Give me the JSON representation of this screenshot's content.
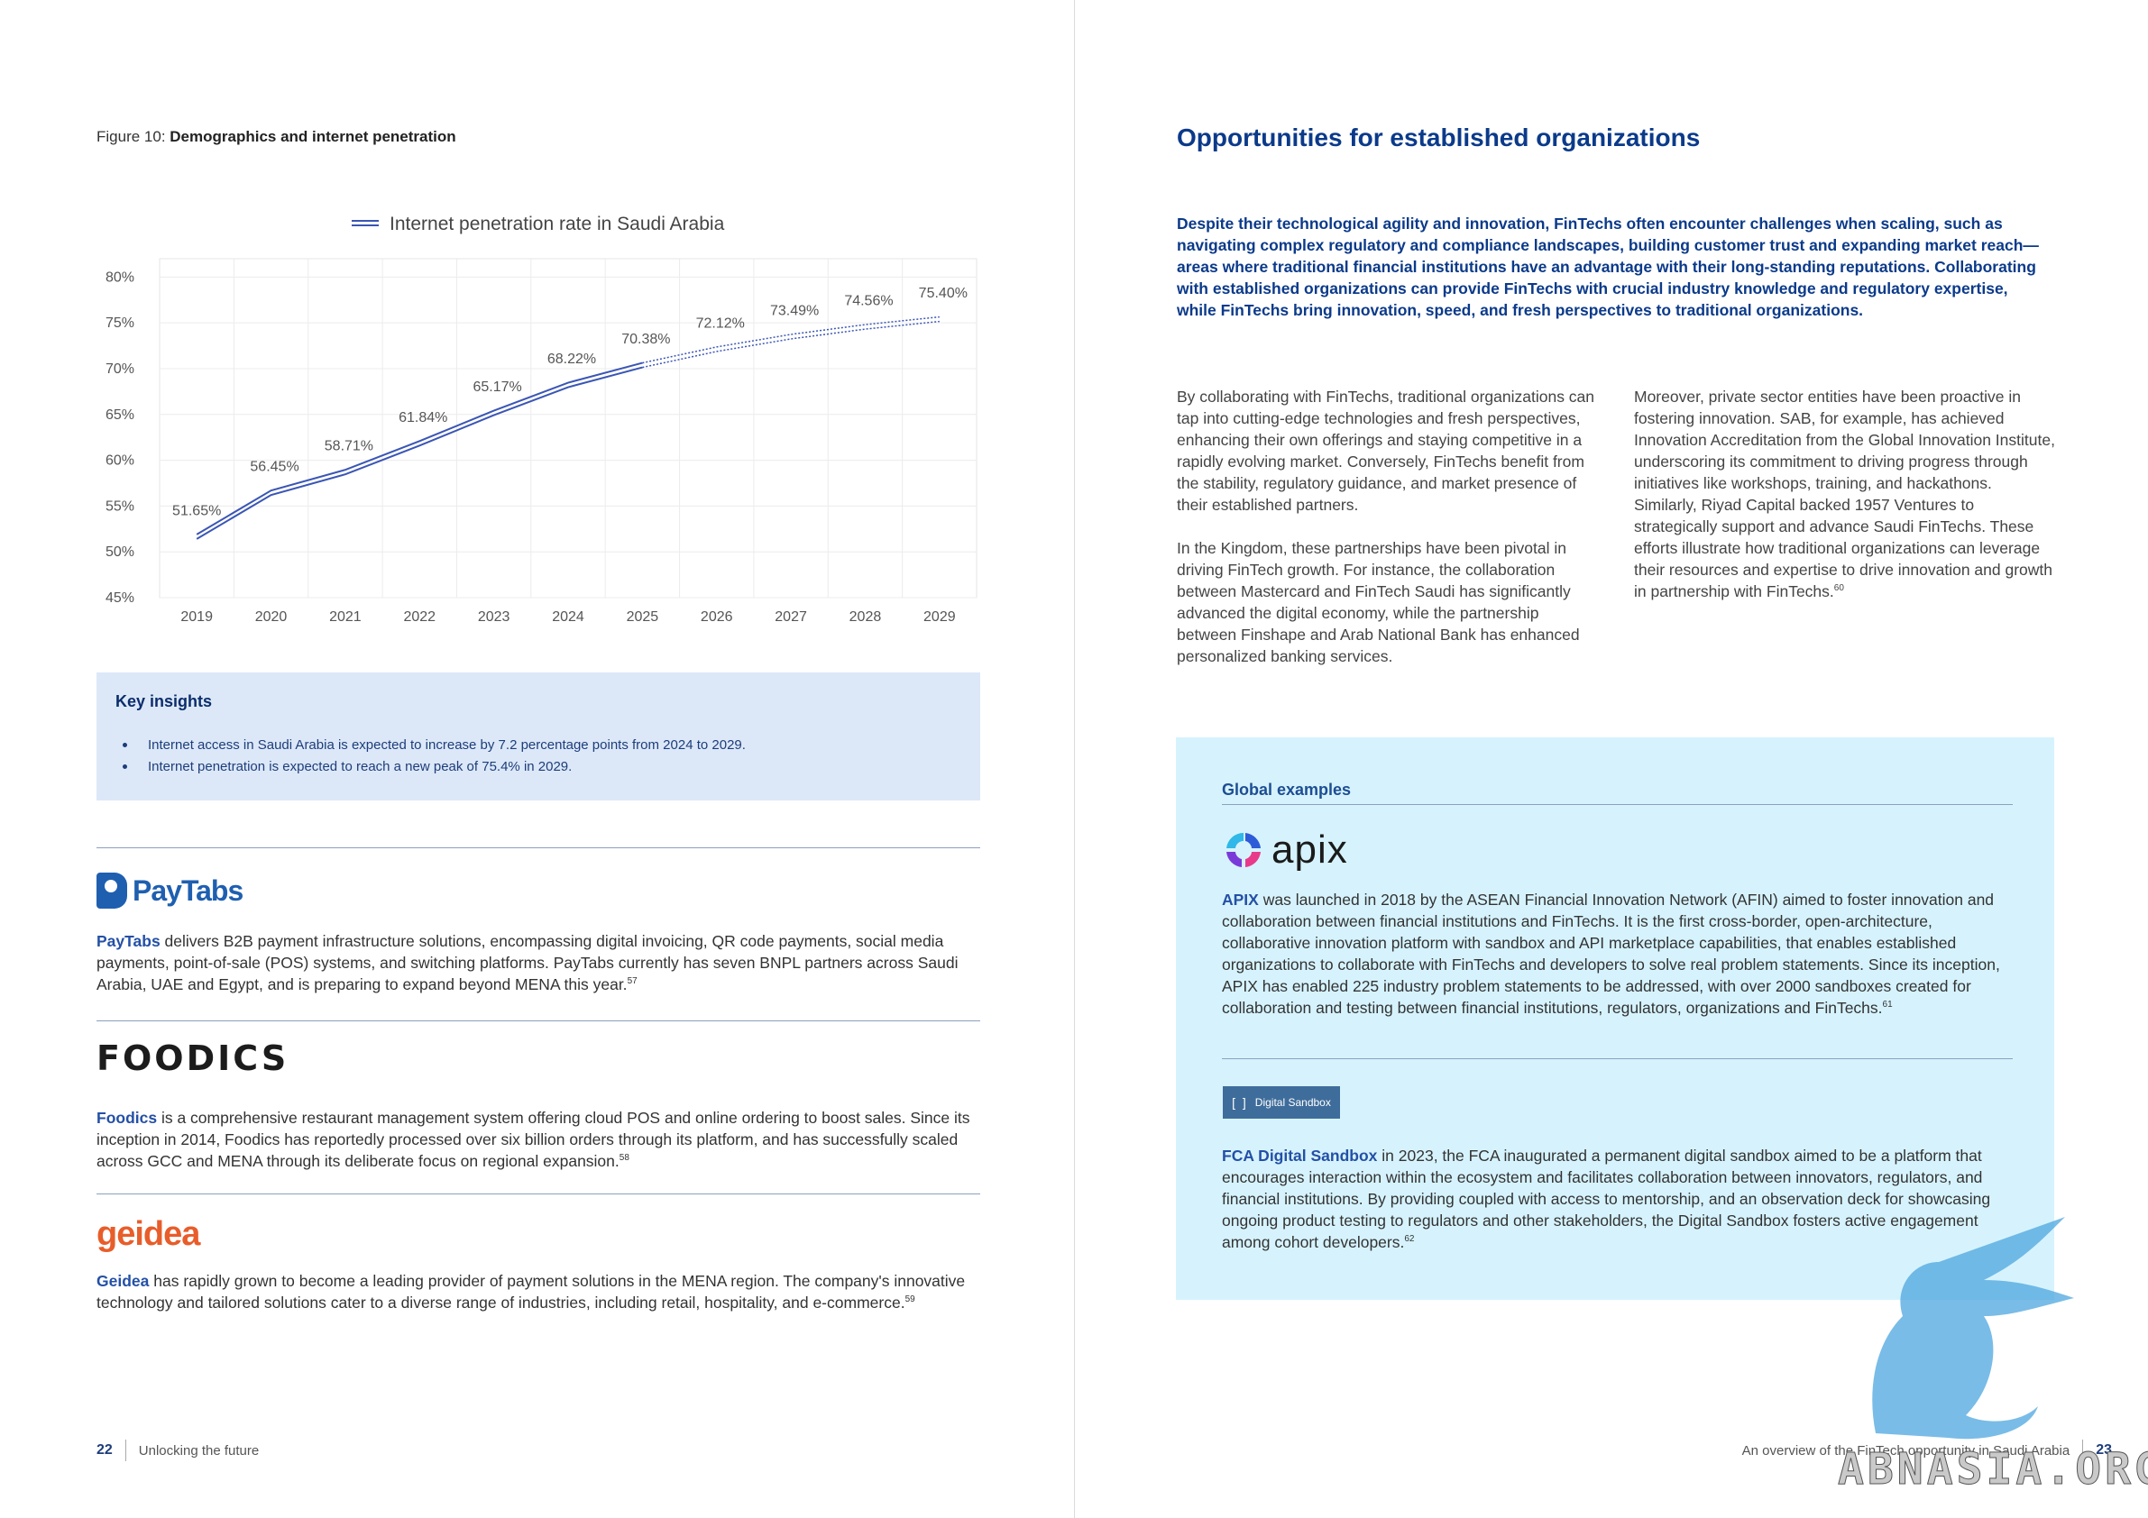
{
  "left_page": {
    "figure_caption_prefix": "Figure 10: ",
    "figure_caption_title": "Demographics and internet penetration",
    "key_insights": {
      "title": "Key insights",
      "items": [
        "Internet access in Saudi Arabia is expected to increase by 7.2 percentage points from 2024 to 2029.",
        "Internet penetration is expected to reach a new peak of 75.4% in 2029."
      ]
    },
    "companies": [
      {
        "logo_text": "PayTabs",
        "name": "PayTabs",
        "text": " delivers B2B payment infrastructure solutions, encompassing digital invoicing, QR code payments, social media payments, point-of-sale (POS) systems, and switching platforms. PayTabs currently has seven BNPL partners across Saudi Arabia, UAE and Egypt, and is preparing to expand beyond MENA this year.",
        "ref": "57"
      },
      {
        "logo_text": "FOODICS",
        "name": "Foodics",
        "text": " is a comprehensive restaurant management system offering cloud POS and online ordering to boost sales. Since its inception in 2014, Foodics has reportedly processed over six billion orders through its platform, and has successfully scaled across GCC and MENA through its deliberate focus on regional expansion.",
        "ref": "58"
      },
      {
        "logo_text": "geidea",
        "name": "Geidea",
        "text": " has rapidly grown to become a leading provider of payment solutions in the MENA region. The company's innovative technology and tailored solutions cater to a diverse range of industries, including retail, hospitality, and e-commerce.",
        "ref": "59"
      }
    ],
    "footer": {
      "page_number": "22",
      "text": "Unlocking the future"
    }
  },
  "right_page": {
    "title": "Opportunities for established organizations",
    "lead": "Despite their technological agility and innovation, FinTechs often encounter challenges when scaling, such as navigating complex regulatory and compliance landscapes, building customer trust and expanding market reach—areas where traditional financial institutions have an advantage with their long-standing reputations. Collaborating with established organizations can provide FinTechs with crucial industry knowledge and regulatory expertise, while FinTechs bring innovation, speed, and fresh perspectives to traditional organizations.",
    "col1": [
      "By collaborating with FinTechs, traditional organizations can tap into cutting-edge technologies and fresh perspectives, enhancing their own offerings and staying competitive in a rapidly evolving market. Conversely, FinTechs benefit from the stability, regulatory guidance, and market presence of their established partners.",
      "In the Kingdom, these partnerships have been pivotal in driving FinTech growth. For instance, the collaboration between Mastercard and FinTech Saudi has significantly advanced the digital economy, while the partnership between Finshape and Arab National Bank has enhanced personalized banking services."
    ],
    "col2_text": "Moreover, private sector entities have been proactive in fostering innovation. SAB, for example, has achieved Innovation Accreditation from the Global Innovation Institute, underscoring its commitment to driving progress through initiatives like workshops, training, and hackathons. Similarly, Riyad Capital backed 1957 Ventures to strategically support and advance Saudi FinTechs. These efforts illustrate how traditional organizations can leverage their resources and expertise to drive innovation and growth in partnership with FinTechs.",
    "col2_ref": "60",
    "global_examples": {
      "title": "Global examples",
      "apix_logo_text": "apix",
      "apix_name": "APIX",
      "apix_text": " was launched in 2018 by the ASEAN Financial Innovation Network (AFIN) aimed to foster innovation and collaboration between financial institutions and FinTechs. It is the first cross-border, open-architecture, collaborative innovation platform with sandbox and API marketplace capabilities, that enables established organizations to collaborate with FinTechs and developers to solve real problem statements. Since its inception, APIX has enabled 225 industry problem statements to be addressed, with over 2000 sandboxes created for collaboration and testing between financial institutions, regulators, organizations and FinTechs.",
      "apix_ref": "61",
      "sandbox_badge": "Digital Sandbox",
      "fca_name": "FCA Digital Sandbox",
      "fca_text": " in 2023, the FCA inaugurated a permanent digital sandbox aimed to be a platform that encourages interaction within the ecosystem and facilitates collaboration between innovators, regulators, and financial institutions. By providing coupled with access to mentorship, and an observation deck for showcasing ongoing product testing to regulators and other stakeholders, the Digital Sandbox fosters active engagement among cohort developers.",
      "fca_ref": "62"
    },
    "footer": {
      "text": "An overview of the FinTech opportunity in Saudi Arabia",
      "page_number": "23"
    },
    "watermark_text": "ABNASIA.ORG"
  },
  "chart_data": {
    "type": "line",
    "x": [
      "2019",
      "2020",
      "2021",
      "2022",
      "2023",
      "2024",
      "2025",
      "2026",
      "2027",
      "2028",
      "2029"
    ],
    "series": [
      {
        "name": "Internet penetration rate in Saudi Arabia",
        "values": [
          51.65,
          56.45,
          58.71,
          61.84,
          65.17,
          68.22,
          70.38,
          72.12,
          73.49,
          74.56,
          75.4
        ],
        "color": "#3a55b4"
      }
    ],
    "data_labels": [
      "51.65%",
      "56.45%",
      "58.71%",
      "61.84%",
      "65.17%",
      "68.22%",
      "70.38%",
      "72.12%",
      "73.49%",
      "74.56%",
      "75.40%"
    ],
    "y_ticks": [
      "45%",
      "50%",
      "55%",
      "60%",
      "65%",
      "70%",
      "75%",
      "80%"
    ],
    "ylim": [
      45,
      82
    ],
    "forecast_from": "2025",
    "grid": true,
    "legend_position": "top-center"
  }
}
